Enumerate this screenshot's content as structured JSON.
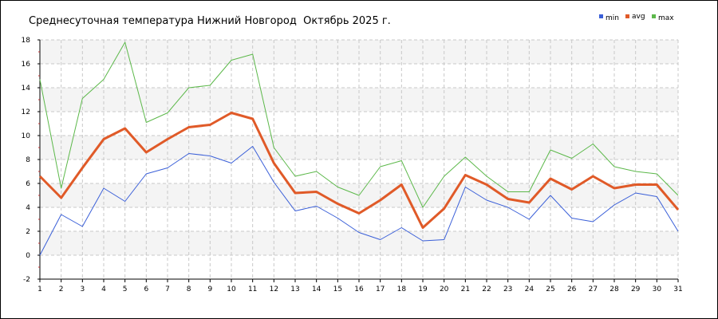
{
  "chart_data": {
    "type": "line",
    "title": "Среднесуточная температура Нижний Новгород  Октябрь 2025 г.",
    "xlabel": "",
    "ylabel": "",
    "x": [
      1,
      2,
      3,
      4,
      5,
      6,
      7,
      8,
      9,
      10,
      11,
      12,
      13,
      14,
      15,
      16,
      17,
      18,
      19,
      20,
      21,
      22,
      23,
      24,
      25,
      26,
      27,
      28,
      29,
      30,
      31
    ],
    "xlim": [
      1,
      31
    ],
    "ylim": [
      -2,
      18
    ],
    "yticks": [
      -2,
      0,
      2,
      4,
      6,
      8,
      10,
      12,
      14,
      16,
      18
    ],
    "grid": true,
    "legend_position": "top-right",
    "series": [
      {
        "name": "min",
        "color": "#3a5fd8",
        "values": [
          0.0,
          3.4,
          2.4,
          5.6,
          4.5,
          6.8,
          7.3,
          8.5,
          8.3,
          7.7,
          9.1,
          6.1,
          3.7,
          4.1,
          3.1,
          1.9,
          1.3,
          2.3,
          1.2,
          1.3,
          5.7,
          4.6,
          4.0,
          3.0,
          5.0,
          3.1,
          2.8,
          4.2,
          5.2,
          4.9,
          2.0
        ]
      },
      {
        "name": "avg",
        "color": "#e05a28",
        "values": [
          6.6,
          4.8,
          7.3,
          9.7,
          10.6,
          8.6,
          9.7,
          10.7,
          10.9,
          11.9,
          11.4,
          7.7,
          5.2,
          5.3,
          4.3,
          3.5,
          4.6,
          5.9,
          2.3,
          3.9,
          6.7,
          5.9,
          4.7,
          4.4,
          6.4,
          5.5,
          6.6,
          5.6,
          5.9,
          5.9,
          3.8
        ]
      },
      {
        "name": "max",
        "color": "#5cb84a",
        "values": [
          14.7,
          5.6,
          13.1,
          14.7,
          17.8,
          11.1,
          11.9,
          14.0,
          14.2,
          16.3,
          16.8,
          9.0,
          6.6,
          7.0,
          5.7,
          5.0,
          7.4,
          7.9,
          4.0,
          6.6,
          8.2,
          6.6,
          5.3,
          5.3,
          8.8,
          8.1,
          9.3,
          7.4,
          7.0,
          6.8,
          5.0
        ]
      }
    ]
  }
}
